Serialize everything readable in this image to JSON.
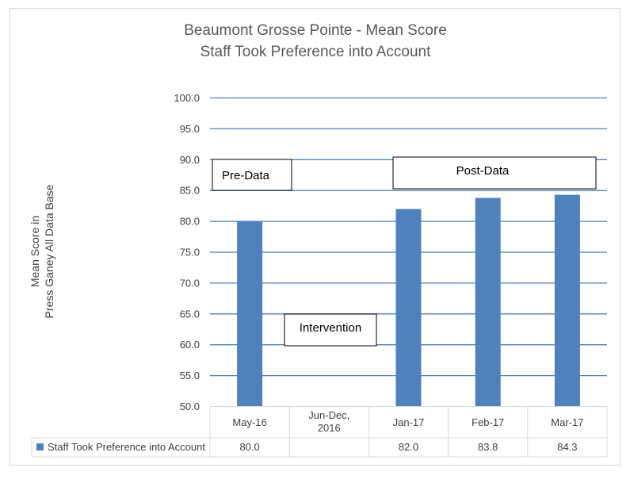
{
  "chart_data": {
    "type": "bar",
    "title_lines": [
      "Beaumont Grosse Pointe -  Mean Score",
      "Staff Took Preference into Account"
    ],
    "ylabel_lines": [
      "Mean Score in",
      "Press Ganey All Data Base"
    ],
    "categories": [
      [
        "May-16"
      ],
      [
        "Jun-Dec,",
        "2016"
      ],
      [
        "Jan-17"
      ],
      [
        "Feb-17"
      ],
      [
        "Mar-17"
      ]
    ],
    "series": [
      {
        "name": "Staff Took Preference into Account",
        "color": "#4f81bd",
        "values": [
          80.0,
          null,
          82.0,
          83.8,
          84.3
        ],
        "value_labels": [
          "80.0",
          "",
          "82.0",
          "83.8",
          "84.3"
        ]
      }
    ],
    "ylim": [
      50,
      100
    ],
    "yticks": [
      "50.0",
      "55.0",
      "60.0",
      "65.0",
      "70.0",
      "75.0",
      "80.0",
      "85.0",
      "90.0",
      "95.0",
      "100.0"
    ],
    "grid": true,
    "annotations": [
      "Pre-Data",
      "Post-Data",
      "Intervention"
    ],
    "data_table": true
  }
}
